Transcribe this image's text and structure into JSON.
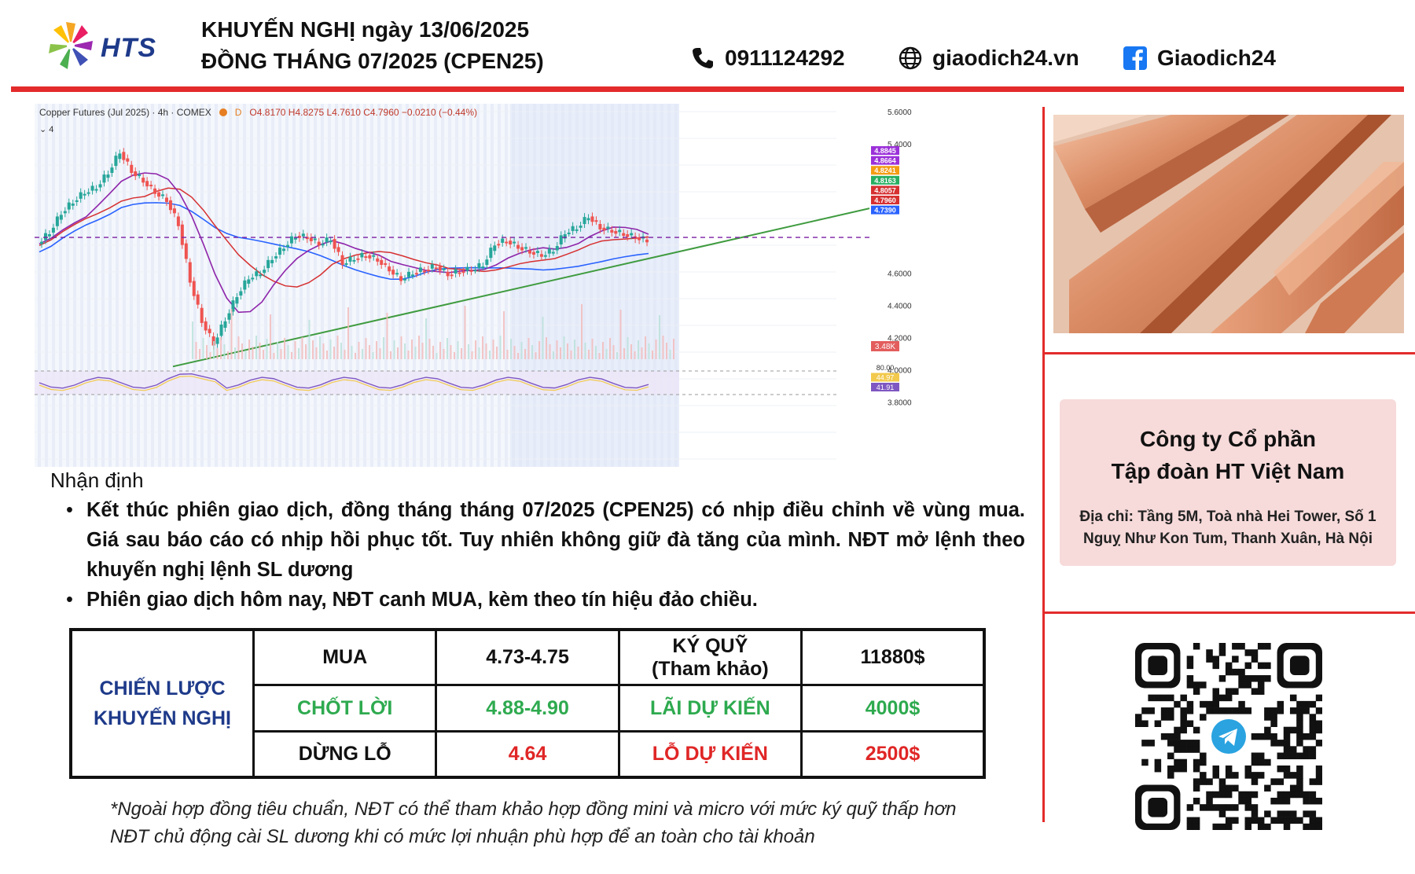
{
  "header": {
    "brand": "HTS",
    "title_line1": "KHUYẾN NGHỊ ngày 13/06/2025",
    "title_line2": "ĐỒNG THÁNG 07/2025 (CPEN25)",
    "phone": "0911124292",
    "website": "giaodich24.vn",
    "facebook": "Giaodich24",
    "icons": [
      "hts-logo-icon",
      "phone-icon",
      "globe-icon",
      "facebook-icon"
    ]
  },
  "chart": {
    "caption": "Copper Futures (Jul 2025) · 4h · COMEX",
    "badge": "D",
    "ohlc": "O4.8170 H4.8275 L4.7610 C4.7960 −0.0210 (−0.44%)",
    "sub": "⌄ 4",
    "volume_label": "3.48K",
    "rsi_labels": [
      "80.00",
      "44.97",
      "41.91"
    ]
  },
  "chart_data": {
    "type": "line",
    "title": "Copper Futures (Jul 2025) · 4h · COMEX",
    "ylim": [
      3.7,
      5.6
    ],
    "yticks": [
      "5.6000",
      "5.4000",
      "4.6000",
      "4.4000",
      "4.2000",
      "4.0000",
      "3.8000"
    ],
    "price_tags": [
      {
        "value": "4.8845",
        "color": "#9b30d9"
      },
      {
        "value": "4.8664",
        "color": "#9b30d9"
      },
      {
        "value": "4.8241",
        "color": "#f39c12"
      },
      {
        "value": "4.8163",
        "color": "#27ae60"
      },
      {
        "value": "4.8057",
        "color": "#d63031"
      },
      {
        "value": "4.7960",
        "color": "#d63031"
      },
      {
        "value": "4.7390",
        "color": "#2962ff"
      }
    ],
    "series": [
      {
        "values": [
          4.78,
          4.85,
          4.97,
          5.04,
          5.1,
          5.13,
          5.22,
          5.35,
          5.23,
          5.17,
          5.1,
          5.05,
          4.9,
          4.55,
          4.3,
          4.16,
          4.31,
          4.46,
          4.57,
          4.6,
          4.69,
          4.76,
          4.83,
          4.82,
          4.78,
          4.81,
          4.66,
          4.69,
          4.71,
          4.68,
          4.62,
          4.56,
          4.6,
          4.62,
          4.64,
          4.59,
          4.61,
          4.62,
          4.65,
          4.78,
          4.8,
          4.76,
          4.73,
          4.71,
          4.74,
          4.85,
          4.88,
          4.95,
          4.88,
          4.86,
          4.84,
          4.82,
          4.8
        ]
      }
    ],
    "support_line": {
      "from": 4.02,
      "to": 5.0
    },
    "resistance_level": 4.82,
    "colors": {
      "up": "#26a69a",
      "down": "#ef5350",
      "trend": "#3f9b3f"
    }
  },
  "right_panel": {
    "image_name": "copper-bars-image",
    "company_line1": "Công ty Cổ phần",
    "company_line2": "Tập đoàn HT Việt Nam",
    "address_line1": "Địa chỉ: Tầng 5M, Toà nhà Hei Tower, Số 1",
    "address_line2": "Nguỵ Như Kon Tum, Thanh Xuân, Hà Nội",
    "qr_name": "telegram-qr-code"
  },
  "analysis": {
    "title": "Nhận định",
    "bullet1": "Kết thúc phiên giao dịch, đồng tháng tháng 07/2025 (CPEN25) có nhịp điều chỉnh về vùng mua. Giá sau báo cáo có nhịp hồi phục tốt. Tuy nhiên không giữ đà tăng của mình. NĐT mở lệnh theo khuyến nghị lệnh SL dương",
    "bullet2": "Phiên giao dịch hôm nay, NĐT canh MUA, kèm theo tín hiệu đảo chiều."
  },
  "strategy": {
    "label_line1": "CHIẾN LƯỢC",
    "label_line2": "KHUYẾN NGHỊ",
    "row1": {
      "a": "MUA",
      "b": "4.73-4.75",
      "c_line1": "KÝ QUỸ",
      "c_line2": "(Tham khảo)",
      "d": "11880$"
    },
    "row2": {
      "a": "CHỐT LỜI",
      "b": "4.88-4.90",
      "c": "LÃI DỰ KIẾN",
      "d": "4000$"
    },
    "row3": {
      "a": "DỪNG LỖ",
      "b": "4.64",
      "c": "LỖ DỰ KIẾN",
      "d": "2500$"
    }
  },
  "footnote": {
    "line1": "*Ngoài hợp đồng tiêu chuẩn, NĐT có thể tham khảo hợp đồng mini và micro với mức ký quỹ thấp hơn",
    "line2": "NĐT chủ động cài SL dương khi có mức lợi nhuận phù hợp để an toàn cho tài khoản"
  }
}
